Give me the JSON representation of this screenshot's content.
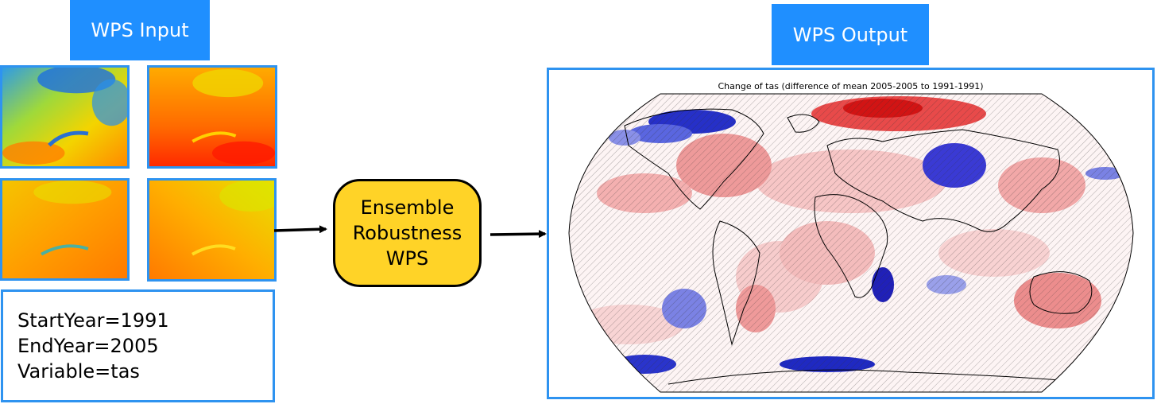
{
  "input": {
    "title": "WPS Input",
    "thumbnails": [
      {
        "name": "input-map-1",
        "palette": "cool"
      },
      {
        "name": "input-map-2",
        "palette": "warm"
      },
      {
        "name": "input-map-3",
        "palette": "orange"
      },
      {
        "name": "input-map-4",
        "palette": "orange-yellow"
      }
    ],
    "params": {
      "start_year": "StartYear=1991",
      "end_year": "EndYear=2005",
      "variable": "Variable=tas"
    }
  },
  "process": {
    "line1": "Ensemble",
    "line2": "Robustness",
    "line3": "WPS",
    "color": "#ffd327"
  },
  "output": {
    "title": "WPS Output",
    "map_title": "Change of tas (difference of mean 2005-2005 to 1991-1991)"
  },
  "colors": {
    "accent": "#1f8fff",
    "border": "#2e93f0",
    "warm": "#e03030",
    "cool": "#1a2fd0"
  }
}
